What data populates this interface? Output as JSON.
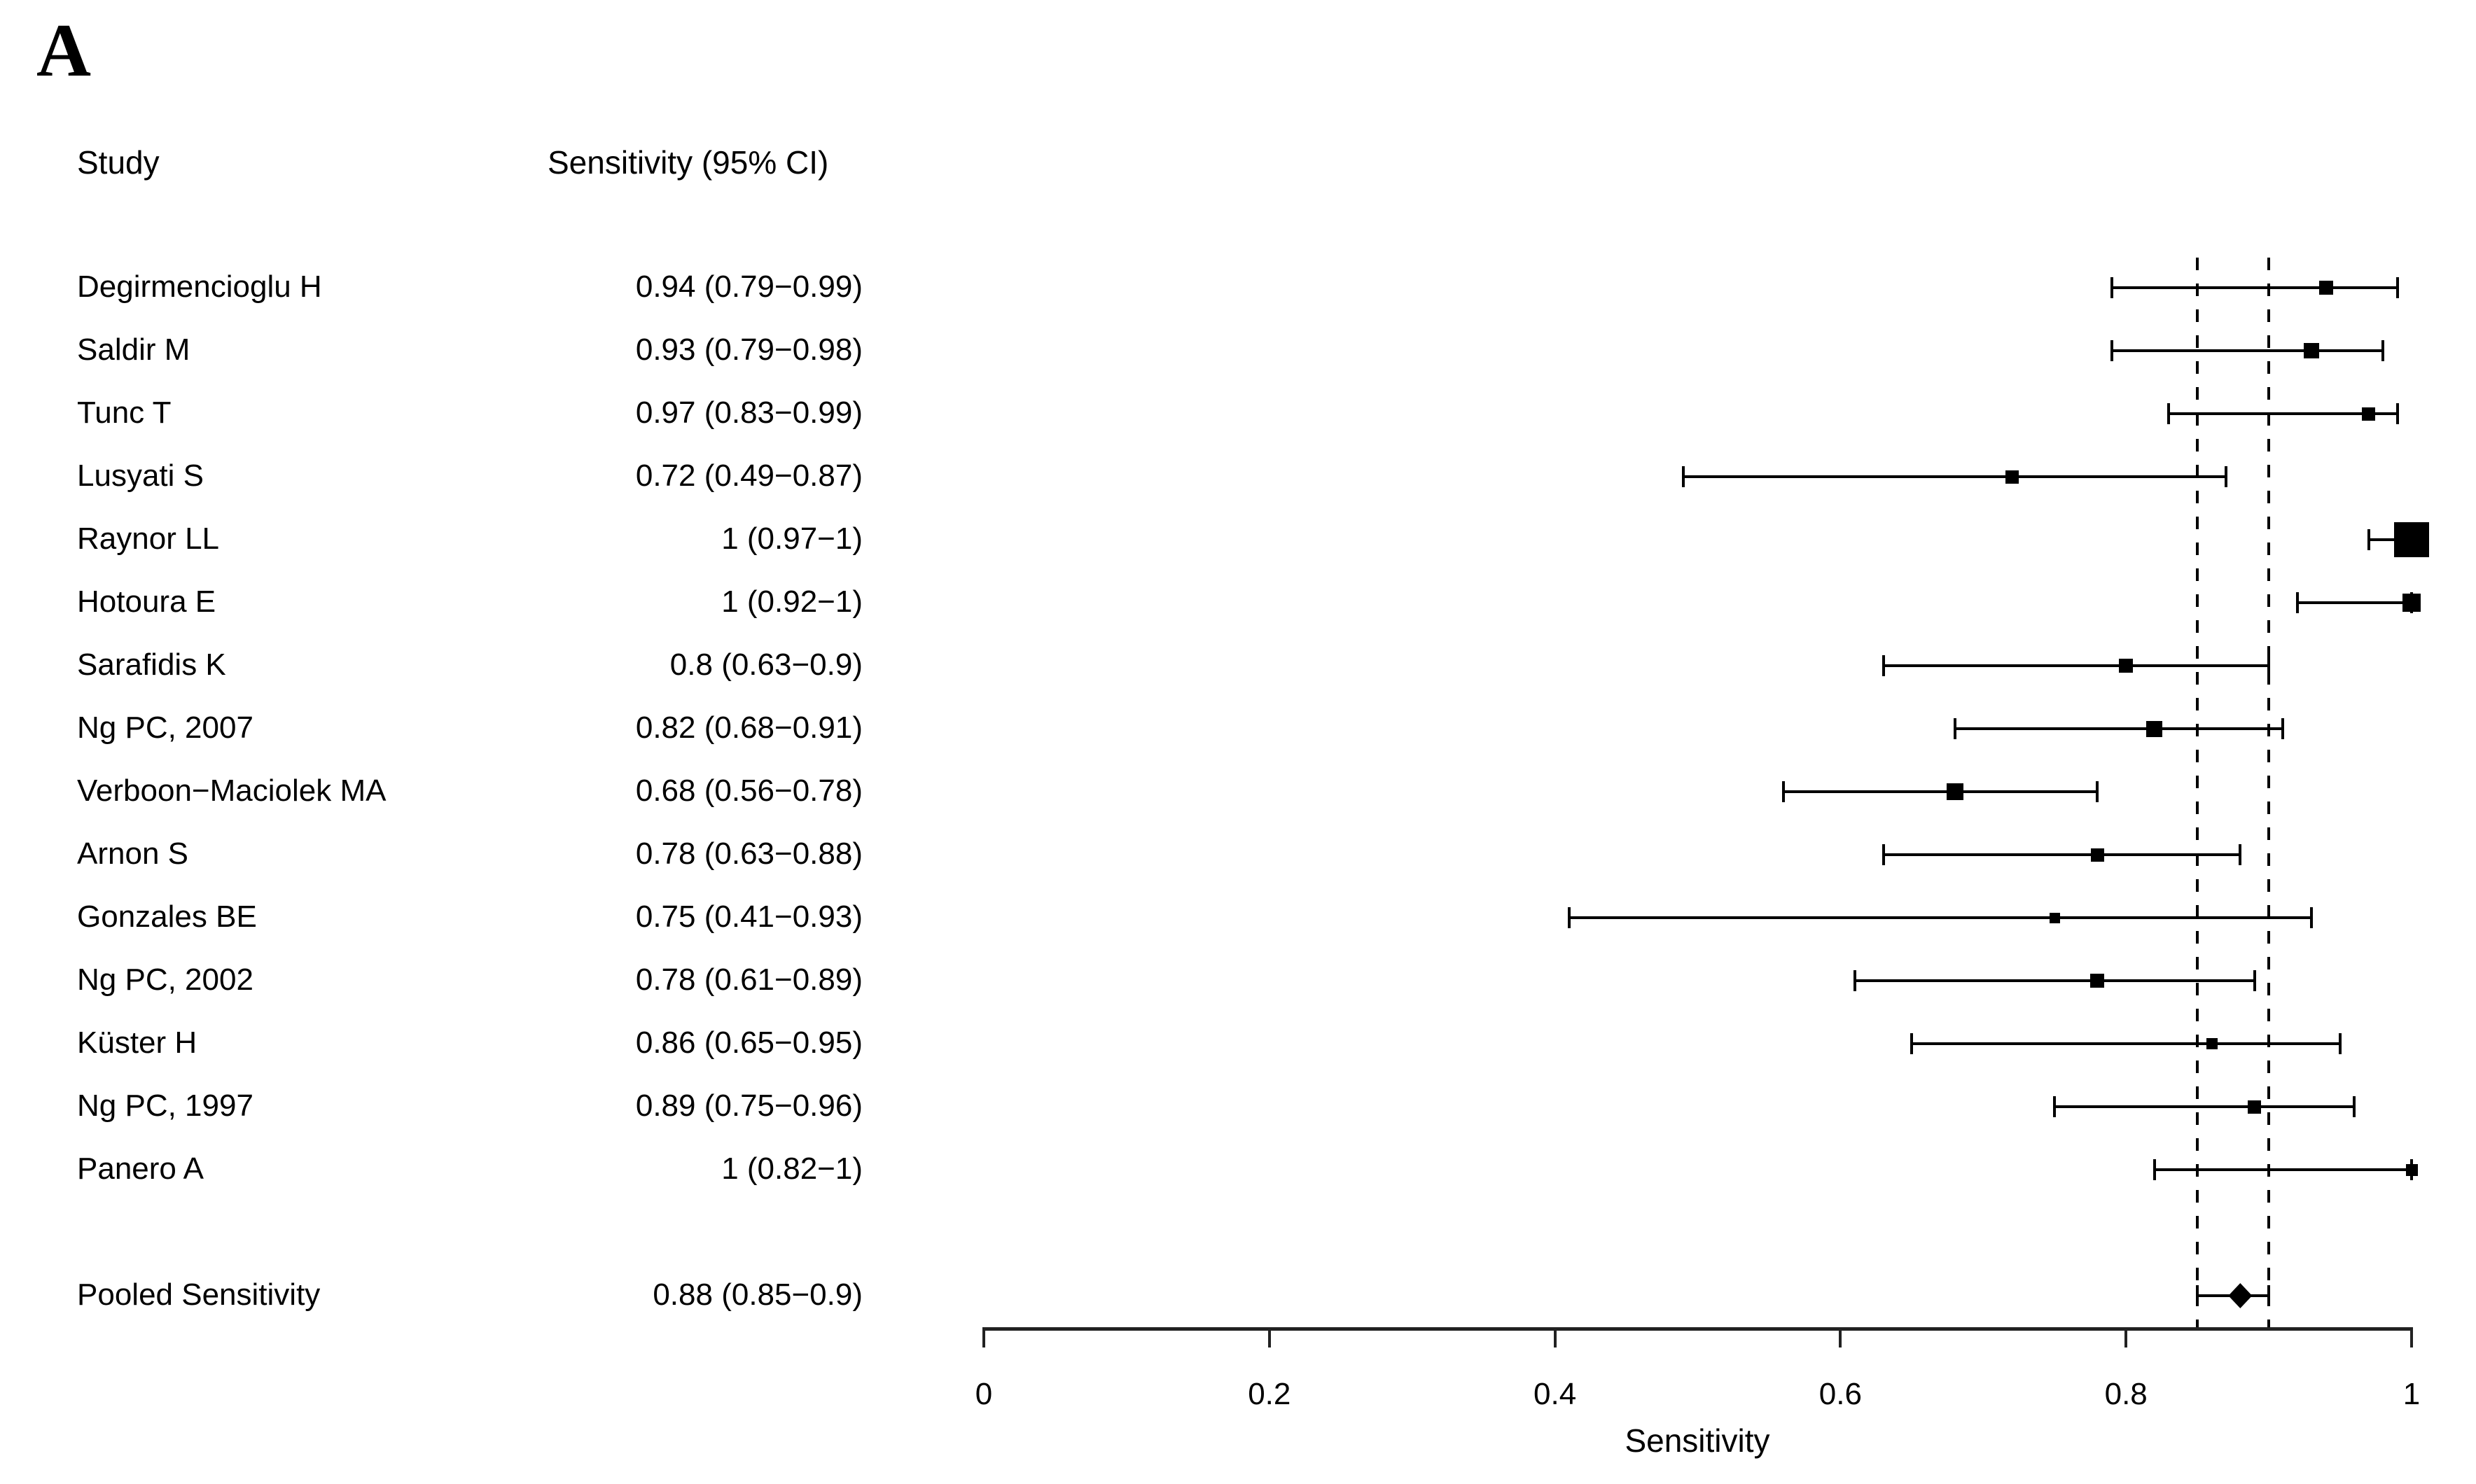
{
  "panel_label": "A",
  "columns": {
    "study_header": "Study",
    "value_header": "Sensitivity (95% CI)"
  },
  "chart_data": {
    "type": "forest",
    "xlabel": "Sensitivity",
    "xlim": [
      0,
      1
    ],
    "x_ticks": [
      "0",
      "0.2",
      "0.4",
      "0.6",
      "0.8",
      "1"
    ],
    "x_tick_values": [
      0,
      0.2,
      0.4,
      0.6,
      0.8,
      1
    ],
    "reference_lines": [
      0.85,
      0.9
    ],
    "grid": "off",
    "legend": "none",
    "studies": [
      {
        "name": "Degirmencioglu H",
        "label": "0.94 (0.79−0.99)",
        "est": 0.94,
        "lo": 0.79,
        "hi": 0.99,
        "marker_size": 20
      },
      {
        "name": "Saldir M",
        "label": "0.93 (0.79−0.98)",
        "est": 0.93,
        "lo": 0.79,
        "hi": 0.98,
        "marker_size": 22
      },
      {
        "name": "Tunc T",
        "label": "0.97 (0.83−0.99)",
        "est": 0.97,
        "lo": 0.83,
        "hi": 0.99,
        "marker_size": 19
      },
      {
        "name": "Lusyati S",
        "label": "0.72 (0.49−0.87)",
        "est": 0.72,
        "lo": 0.49,
        "hi": 0.87,
        "marker_size": 19
      },
      {
        "name": "Raynor LL",
        "label": "1 (0.97−1)",
        "est": 1,
        "lo": 0.97,
        "hi": 1,
        "marker_size": 50
      },
      {
        "name": "Hotoura E",
        "label": "1 (0.92−1)",
        "est": 1,
        "lo": 0.92,
        "hi": 1,
        "marker_size": 26
      },
      {
        "name": "Sarafidis K",
        "label": "0.8 (0.63−0.9)",
        "est": 0.8,
        "lo": 0.63,
        "hi": 0.9,
        "marker_size": 20
      },
      {
        "name": "Ng PC, 2007",
        "label": "0.82 (0.68−0.91)",
        "est": 0.82,
        "lo": 0.68,
        "hi": 0.91,
        "marker_size": 23
      },
      {
        "name": "Verboon−Maciolek MA",
        "label": "0.68 (0.56−0.78)",
        "est": 0.68,
        "lo": 0.56,
        "hi": 0.78,
        "marker_size": 24
      },
      {
        "name": "Arnon S",
        "label": "0.78 (0.63−0.88)",
        "est": 0.78,
        "lo": 0.63,
        "hi": 0.88,
        "marker_size": 19
      },
      {
        "name": "Gonzales BE",
        "label": "0.75 (0.41−0.93)",
        "est": 0.75,
        "lo": 0.41,
        "hi": 0.93,
        "marker_size": 15
      },
      {
        "name": "Ng PC, 2002",
        "label": "0.78 (0.61−0.89)",
        "est": 0.78,
        "lo": 0.61,
        "hi": 0.89,
        "marker_size": 20
      },
      {
        "name": "Küster H",
        "label": "0.86 (0.65−0.95)",
        "est": 0.86,
        "lo": 0.65,
        "hi": 0.95,
        "marker_size": 16
      },
      {
        "name": "Ng PC, 1997",
        "label": "0.89 (0.75−0.96)",
        "est": 0.89,
        "lo": 0.75,
        "hi": 0.96,
        "marker_size": 19
      },
      {
        "name": "Panero A",
        "label": "1 (0.82−1)",
        "est": 1,
        "lo": 0.82,
        "hi": 1,
        "marker_size": 17
      }
    ],
    "pooled": {
      "name": "Pooled Sensitivity",
      "label": "0.88 (0.85−0.9)",
      "est": 0.88,
      "lo": 0.85,
      "hi": 0.9
    }
  }
}
